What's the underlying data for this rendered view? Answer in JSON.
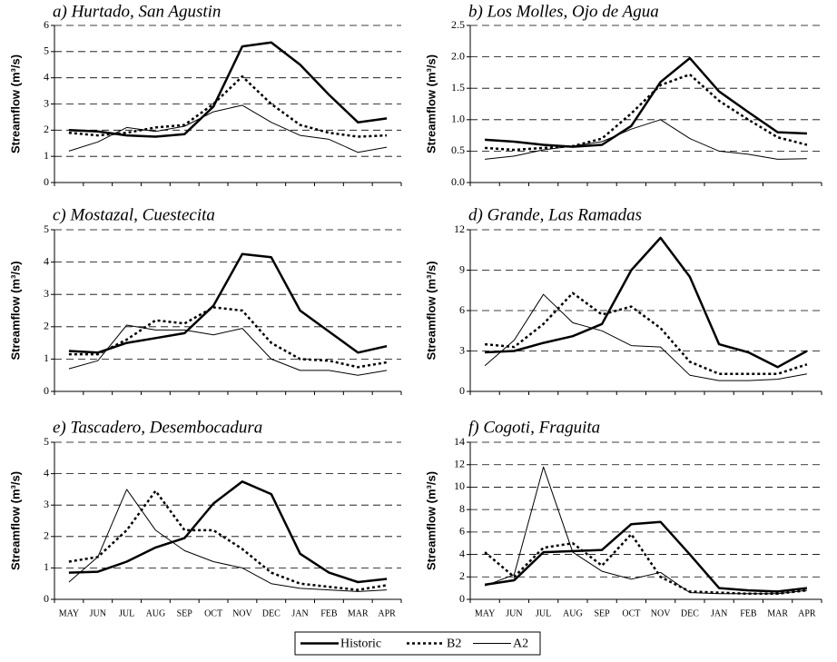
{
  "chart_data": [
    {
      "type": "line",
      "title": "a) Hurtado, San Agustin",
      "ylabel": "Streamflow (m³/s)",
      "ylim": [
        0,
        6
      ],
      "yticks": [
        0,
        1,
        2,
        3,
        4,
        5,
        6
      ],
      "grid": true,
      "series": [
        {
          "name": "Historic",
          "color": "#000000",
          "style": "thick",
          "values": [
            2.0,
            1.95,
            1.8,
            1.75,
            1.85,
            2.9,
            5.2,
            5.35,
            4.5,
            3.35,
            2.3,
            2.45
          ]
        },
        {
          "name": "B2",
          "color": "#000000",
          "style": "dotted",
          "values": [
            1.9,
            1.8,
            1.9,
            2.1,
            2.2,
            3.0,
            4.05,
            3.0,
            2.2,
            1.9,
            1.75,
            1.8
          ]
        },
        {
          "name": "A2",
          "color": "#000000",
          "style": "thin",
          "values": [
            1.2,
            1.55,
            2.1,
            1.95,
            2.15,
            2.7,
            2.95,
            2.3,
            1.8,
            1.65,
            1.15,
            1.35
          ]
        }
      ]
    },
    {
      "type": "line",
      "title": "b) Los Molles, Ojo de Agua",
      "ylabel": "Streamflow (m³/s)",
      "ylim": [
        0,
        2.5
      ],
      "yticks": [
        {
          "value": 0,
          "label": "0.0"
        },
        {
          "value": 0.5,
          "label": "0.5"
        },
        {
          "value": 1,
          "label": "1.0"
        },
        {
          "value": 1.5,
          "label": "1.5"
        },
        {
          "value": 2,
          "label": "2.0"
        },
        {
          "value": 2.5,
          "label": "2.5"
        }
      ],
      "grid": true,
      "series": [
        {
          "name": "Historic",
          "color": "#000000",
          "style": "thick",
          "values": [
            0.68,
            0.65,
            0.6,
            0.57,
            0.6,
            0.9,
            1.6,
            1.98,
            1.45,
            1.12,
            0.8,
            0.78
          ]
        },
        {
          "name": "B2",
          "color": "#000000",
          "style": "dotted",
          "values": [
            0.55,
            0.52,
            0.55,
            0.58,
            0.7,
            1.1,
            1.55,
            1.72,
            1.3,
            1.0,
            0.72,
            0.6
          ]
        },
        {
          "name": "A2",
          "color": "#000000",
          "style": "thin",
          "values": [
            0.37,
            0.42,
            0.52,
            0.58,
            0.65,
            0.85,
            1.0,
            0.7,
            0.5,
            0.45,
            0.37,
            0.38
          ]
        }
      ]
    },
    {
      "type": "line",
      "title": "c) Mostazal, Cuestecita",
      "ylabel": "Streamflow (m³/s)",
      "ylim": [
        0,
        5
      ],
      "yticks": [
        0,
        1,
        2,
        3,
        4,
        5
      ],
      "grid": true,
      "series": [
        {
          "name": "Historic",
          "color": "#000000",
          "style": "thick",
          "values": [
            1.25,
            1.2,
            1.5,
            1.65,
            1.8,
            2.65,
            4.25,
            4.15,
            2.5,
            1.85,
            1.2,
            1.4
          ]
        },
        {
          "name": "B2",
          "color": "#000000",
          "style": "dotted",
          "values": [
            1.15,
            1.15,
            1.6,
            2.2,
            2.1,
            2.6,
            2.5,
            1.5,
            1.0,
            0.95,
            0.75,
            0.9
          ]
        },
        {
          "name": "A2",
          "color": "#000000",
          "style": "thin",
          "values": [
            0.7,
            0.95,
            2.05,
            1.9,
            1.9,
            1.75,
            1.95,
            1.0,
            0.65,
            0.65,
            0.5,
            0.65
          ]
        }
      ]
    },
    {
      "type": "line",
      "title": "d) Grande, Las Ramadas",
      "ylabel": "Streamflow (m³/s)",
      "ylim": [
        0,
        12
      ],
      "yticks": [
        0,
        3,
        6,
        9,
        12
      ],
      "grid": true,
      "series": [
        {
          "name": "Historic",
          "color": "#000000",
          "style": "thick",
          "values": [
            2.9,
            3.0,
            3.6,
            4.1,
            5.0,
            9.0,
            11.4,
            8.5,
            3.5,
            2.9,
            1.8,
            3.0
          ]
        },
        {
          "name": "B2",
          "color": "#000000",
          "style": "dotted",
          "values": [
            3.5,
            3.3,
            5.0,
            7.3,
            5.7,
            6.3,
            4.7,
            2.2,
            1.3,
            1.3,
            1.3,
            2.0
          ]
        },
        {
          "name": "A2",
          "color": "#000000",
          "style": "thin",
          "values": [
            1.9,
            3.8,
            7.2,
            5.1,
            4.5,
            3.4,
            3.3,
            1.2,
            0.8,
            0.8,
            0.9,
            1.3
          ]
        }
      ]
    },
    {
      "type": "line",
      "title": "e) Tascadero, Desembocadura",
      "ylabel": "Streamflow (m³/s)",
      "ylim": [
        0,
        5
      ],
      "yticks": [
        0,
        1,
        2,
        3,
        4,
        5
      ],
      "grid": true,
      "categories": [
        "MAY",
        "JUN",
        "JUL",
        "AUG",
        "SEP",
        "OCT",
        "NOV",
        "DEC",
        "JAN",
        "FEB",
        "MAR",
        "APR"
      ],
      "series": [
        {
          "name": "Historic",
          "color": "#000000",
          "style": "thick",
          "values": [
            0.85,
            0.88,
            1.2,
            1.65,
            1.95,
            3.05,
            3.75,
            3.35,
            1.45,
            0.85,
            0.55,
            0.65
          ]
        },
        {
          "name": "B2",
          "color": "#000000",
          "style": "dotted",
          "values": [
            1.2,
            1.35,
            2.2,
            3.45,
            2.2,
            2.2,
            1.6,
            0.85,
            0.5,
            0.4,
            0.3,
            0.45
          ]
        },
        {
          "name": "A2",
          "color": "#000000",
          "style": "thin",
          "values": [
            0.55,
            1.35,
            3.5,
            2.2,
            1.55,
            1.2,
            1.0,
            0.5,
            0.35,
            0.3,
            0.25,
            0.3
          ]
        }
      ]
    },
    {
      "type": "line",
      "title": "f) Cogoti, Fraguita",
      "ylabel": "Streamflow (m³/s)",
      "ylim": [
        0,
        14
      ],
      "yticks": [
        0,
        2,
        4,
        6,
        8,
        10,
        12,
        14
      ],
      "grid": true,
      "categories": [
        "MAY",
        "JUN",
        "JUL",
        "AUG",
        "SEP",
        "OCT",
        "NOV",
        "DEC",
        "JAN",
        "FEB",
        "MAR",
        "APR"
      ],
      "series": [
        {
          "name": "Historic",
          "color": "#000000",
          "style": "thick",
          "values": [
            1.3,
            1.7,
            4.2,
            4.3,
            4.4,
            6.7,
            6.9,
            4.0,
            1.0,
            0.8,
            0.7,
            1.0
          ]
        },
        {
          "name": "B2",
          "color": "#000000",
          "style": "dotted",
          "values": [
            4.2,
            2.0,
            4.6,
            5.0,
            3.0,
            5.8,
            2.0,
            0.7,
            0.6,
            0.5,
            0.5,
            0.8
          ]
        },
        {
          "name": "A2",
          "color": "#000000",
          "style": "thin",
          "values": [
            1.2,
            2.2,
            11.8,
            4.2,
            2.5,
            1.8,
            2.4,
            0.6,
            0.5,
            0.5,
            0.5,
            0.8
          ]
        }
      ]
    }
  ]
}
